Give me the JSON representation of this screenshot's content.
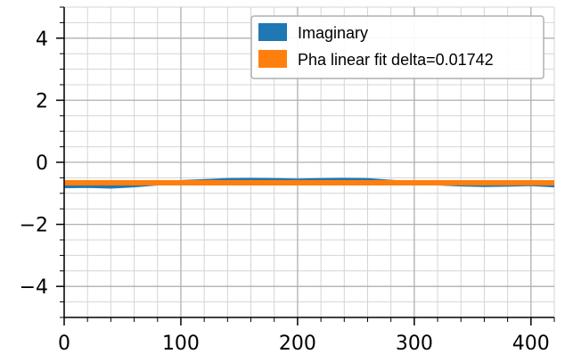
{
  "chart_data": {
    "type": "line",
    "title": "",
    "xlabel": "",
    "ylabel": "",
    "xlim": [
      0,
      420
    ],
    "ylim": [
      -5,
      5
    ],
    "x_ticks": [
      0,
      100,
      200,
      300,
      400
    ],
    "x_tick_labels": [
      "0",
      "100",
      "200",
      "300",
      "400"
    ],
    "y_ticks": [
      -4,
      -2,
      0,
      2,
      4
    ],
    "y_tick_labels": [
      "−4",
      "−2",
      "0",
      "2",
      "4"
    ],
    "grid": true,
    "grid_minor": true,
    "legend_position": "top-right",
    "series": [
      {
        "name": "Imaginary",
        "color": "#1f77b4",
        "x": [
          0,
          20,
          40,
          60,
          80,
          100,
          120,
          140,
          160,
          180,
          200,
          220,
          240,
          260,
          280,
          300,
          320,
          340,
          360,
          380,
          400,
          420
        ],
        "y": [
          -0.78,
          -0.77,
          -0.79,
          -0.75,
          -0.69,
          -0.63,
          -0.6,
          -0.57,
          -0.56,
          -0.57,
          -0.58,
          -0.57,
          -0.56,
          -0.57,
          -0.62,
          -0.66,
          -0.69,
          -0.72,
          -0.74,
          -0.73,
          -0.71,
          -0.75
        ]
      },
      {
        "name": "Pha linear fit delta=0.01742",
        "color": "#ff7f0e",
        "x": [
          0,
          420
        ],
        "y": [
          -0.66,
          -0.66
        ]
      }
    ]
  }
}
